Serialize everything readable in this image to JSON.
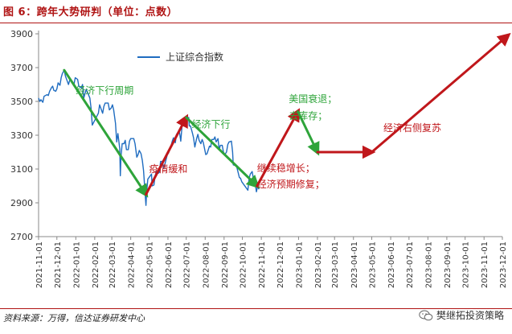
{
  "figure": {
    "title": "图 6：跨年大势研判（单位：点数）",
    "source": "资料来源：万得，信达证券研发中心",
    "brand": "樊继拓投资策略",
    "brand_icon": "wechat-icon"
  },
  "colors": {
    "title": "#b01414",
    "line": "#1f6cc0",
    "green": "#2ea43a",
    "red": "#c0171b",
    "axis": "#888888",
    "tick_text": "#333333"
  },
  "chart_data": {
    "type": "line",
    "ylim": [
      2700,
      3900
    ],
    "yticks": [
      2700,
      2900,
      3100,
      3300,
      3500,
      3700,
      3900
    ],
    "x_start": "2021-11-01",
    "x_end": "2023-12-01",
    "xticks": [
      "2021-11-01",
      "2021-12-01",
      "2022-01-01",
      "2022-02-01",
      "2022-03-01",
      "2022-04-01",
      "2022-05-01",
      "2022-06-01",
      "2022-07-01",
      "2022-08-01",
      "2022-09-01",
      "2022-10-01",
      "2022-11-01",
      "2022-12-01",
      "2023-01-01",
      "2023-02-01",
      "2023-03-01",
      "2023-04-01",
      "2023-05-01",
      "2023-06-01",
      "2023-07-01",
      "2023-08-01",
      "2023-09-01",
      "2023-10-01",
      "2023-11-01",
      "2023-12-01"
    ],
    "legend": "上证综合指数",
    "series": [
      {
        "name": "上证综合指数",
        "points": [
          [
            "2021-11-01",
            3520
          ],
          [
            "2021-11-03",
            3500
          ],
          [
            "2021-11-05",
            3510
          ],
          [
            "2021-11-08",
            3495
          ],
          [
            "2021-11-10",
            3530
          ],
          [
            "2021-11-12",
            3535
          ],
          [
            "2021-11-15",
            3540
          ],
          [
            "2021-11-17",
            3535
          ],
          [
            "2021-11-19",
            3560
          ],
          [
            "2021-11-22",
            3580
          ],
          [
            "2021-11-24",
            3590
          ],
          [
            "2021-11-26",
            3565
          ],
          [
            "2021-11-29",
            3560
          ],
          [
            "2021-12-01",
            3575
          ],
          [
            "2021-12-03",
            3610
          ],
          [
            "2021-12-06",
            3595
          ],
          [
            "2021-12-08",
            3640
          ],
          [
            "2021-12-10",
            3665
          ],
          [
            "2021-12-13",
            3685
          ],
          [
            "2021-12-15",
            3650
          ],
          [
            "2021-12-17",
            3630
          ],
          [
            "2021-12-20",
            3600
          ],
          [
            "2021-12-22",
            3625
          ],
          [
            "2021-12-24",
            3620
          ],
          [
            "2021-12-27",
            3615
          ],
          [
            "2021-12-29",
            3600
          ],
          [
            "2021-12-31",
            3640
          ],
          [
            "2022-01-04",
            3630
          ],
          [
            "2022-01-06",
            3590
          ],
          [
            "2022-01-10",
            3580
          ],
          [
            "2022-01-12",
            3600
          ],
          [
            "2022-01-14",
            3520
          ],
          [
            "2022-01-18",
            3570
          ],
          [
            "2022-01-20",
            3555
          ],
          [
            "2022-01-24",
            3520
          ],
          [
            "2022-01-26",
            3460
          ],
          [
            "2022-01-28",
            3360
          ],
          [
            "2022-02-07",
            3430
          ],
          [
            "2022-02-09",
            3480
          ],
          [
            "2022-02-11",
            3460
          ],
          [
            "2022-02-14",
            3430
          ],
          [
            "2022-02-16",
            3470
          ],
          [
            "2022-02-18",
            3490
          ],
          [
            "2022-02-21",
            3490
          ],
          [
            "2022-02-23",
            3490
          ],
          [
            "2022-02-25",
            3450
          ],
          [
            "2022-02-28",
            3460
          ],
          [
            "2022-03-02",
            3480
          ],
          [
            "2022-03-04",
            3450
          ],
          [
            "2022-03-07",
            3370
          ],
          [
            "2022-03-09",
            3260
          ],
          [
            "2022-03-11",
            3310
          ],
          [
            "2022-03-14",
            3220
          ],
          [
            "2022-03-15",
            3060
          ],
          [
            "2022-03-16",
            3170
          ],
          [
            "2022-03-18",
            3250
          ],
          [
            "2022-03-21",
            3250
          ],
          [
            "2022-03-23",
            3270
          ],
          [
            "2022-03-25",
            3215
          ],
          [
            "2022-03-28",
            3215
          ],
          [
            "2022-03-30",
            3265
          ],
          [
            "2022-04-01",
            3280
          ],
          [
            "2022-04-06",
            3280
          ],
          [
            "2022-04-08",
            3250
          ],
          [
            "2022-04-11",
            3170
          ],
          [
            "2022-04-13",
            3185
          ],
          [
            "2022-04-15",
            3210
          ],
          [
            "2022-04-18",
            3190
          ],
          [
            "2022-04-20",
            3150
          ],
          [
            "2022-04-22",
            3090
          ],
          [
            "2022-04-25",
            2930
          ],
          [
            "2022-04-26",
            2885
          ],
          [
            "2022-04-27",
            2960
          ],
          [
            "2022-04-29",
            3040
          ],
          [
            "2022-05-05",
            3070
          ],
          [
            "2022-05-06",
            3000
          ],
          [
            "2022-05-09",
            3005
          ],
          [
            "2022-05-11",
            3060
          ],
          [
            "2022-05-13",
            3085
          ],
          [
            "2022-05-16",
            3075
          ],
          [
            "2022-05-18",
            3080
          ],
          [
            "2022-05-20",
            3145
          ],
          [
            "2022-05-23",
            3145
          ],
          [
            "2022-05-25",
            3105
          ],
          [
            "2022-05-27",
            3130
          ],
          [
            "2022-05-31",
            3185
          ],
          [
            "2022-06-02",
            3195
          ],
          [
            "2022-06-06",
            3235
          ],
          [
            "2022-06-08",
            3265
          ],
          [
            "2022-06-10",
            3285
          ],
          [
            "2022-06-13",
            3255
          ],
          [
            "2022-06-15",
            3305
          ],
          [
            "2022-06-17",
            3315
          ],
          [
            "2022-06-20",
            3315
          ],
          [
            "2022-06-22",
            3265
          ],
          [
            "2022-06-24",
            3350
          ],
          [
            "2022-06-27",
            3380
          ],
          [
            "2022-06-29",
            3360
          ],
          [
            "2022-07-01",
            3390
          ],
          [
            "2022-07-05",
            3405
          ],
          [
            "2022-07-06",
            3355
          ],
          [
            "2022-07-08",
            3355
          ],
          [
            "2022-07-11",
            3315
          ],
          [
            "2022-07-13",
            3285
          ],
          [
            "2022-07-15",
            3230
          ],
          [
            "2022-07-18",
            3280
          ],
          [
            "2022-07-20",
            3305
          ],
          [
            "2022-07-22",
            3270
          ],
          [
            "2022-07-25",
            3250
          ],
          [
            "2022-07-27",
            3275
          ],
          [
            "2022-07-29",
            3255
          ],
          [
            "2022-08-02",
            3185
          ],
          [
            "2022-08-04",
            3190
          ],
          [
            "2022-08-08",
            3235
          ],
          [
            "2022-08-10",
            3230
          ],
          [
            "2022-08-12",
            3275
          ],
          [
            "2022-08-15",
            3275
          ],
          [
            "2022-08-17",
            3290
          ],
          [
            "2022-08-19",
            3260
          ],
          [
            "2022-08-22",
            3280
          ],
          [
            "2022-08-24",
            3215
          ],
          [
            "2022-08-26",
            3240
          ],
          [
            "2022-08-29",
            3240
          ],
          [
            "2022-08-31",
            3200
          ],
          [
            "2022-09-02",
            3185
          ],
          [
            "2022-09-05",
            3200
          ],
          [
            "2022-09-07",
            3245
          ],
          [
            "2022-09-09",
            3260
          ],
          [
            "2022-09-13",
            3265
          ],
          [
            "2022-09-15",
            3200
          ],
          [
            "2022-09-16",
            3125
          ],
          [
            "2022-09-20",
            3120
          ],
          [
            "2022-09-22",
            3110
          ],
          [
            "2022-09-26",
            3050
          ],
          [
            "2022-09-28",
            3045
          ],
          [
            "2022-09-30",
            3025
          ],
          [
            "2022-10-10",
            2975
          ],
          [
            "2022-10-12",
            3045
          ],
          [
            "2022-10-14",
            3070
          ],
          [
            "2022-10-17",
            3085
          ],
          [
            "2022-10-19",
            3045
          ],
          [
            "2022-10-21",
            3040
          ],
          [
            "2022-10-24",
            2965
          ],
          [
            "2022-10-26",
            3000
          ],
          [
            "2022-10-28",
            2980
          ]
        ]
      }
    ],
    "trend_arrows": [
      {
        "color": "green",
        "from": [
          "2021-12-13",
          3685
        ],
        "to": [
          "2022-04-26",
          2950
        ]
      },
      {
        "color": "red",
        "from": [
          "2022-04-26",
          2950
        ],
        "to": [
          "2022-07-01",
          3405
        ]
      },
      {
        "color": "green",
        "from": [
          "2022-07-01",
          3405
        ],
        "to": [
          "2022-10-25",
          3000
        ]
      },
      {
        "color": "red",
        "from": [
          "2022-10-25",
          3000
        ],
        "to": [
          "2022-12-31",
          3440
        ]
      },
      {
        "color": "green",
        "from": [
          "2022-12-31",
          3440
        ],
        "to": [
          "2023-02-01",
          3200
        ]
      },
      {
        "color": "red",
        "from": [
          "2023-02-01",
          3200
        ],
        "to": [
          "2023-05-01",
          3200
        ]
      },
      {
        "color": "red",
        "from": [
          "2023-05-01",
          3200
        ],
        "to": [
          "2023-12-10",
          3890
        ]
      }
    ],
    "annotations": [
      {
        "id": "economy-down-cycle",
        "text": "经济下行周期",
        "color": "green",
        "x": "2022-01-01",
        "y": 3545
      },
      {
        "id": "economy-down",
        "text": "经济下行",
        "color": "green",
        "x": "2022-07-10",
        "y": 3345
      },
      {
        "id": "epidemic-ease",
        "text": "疫情缓和",
        "color": "red",
        "x": "2022-05-01",
        "y": 3080
      },
      {
        "id": "continued-growth",
        "text": "继续稳增长；",
        "color": "red",
        "x": "2022-10-25",
        "y": 3085
      },
      {
        "id": "expected-recovery",
        "text": "经济预期修复；",
        "color": "red",
        "x": "2022-10-25",
        "y": 2990
      },
      {
        "id": "us-recession",
        "text": "美国衰退；",
        "color": "green",
        "x": "2022-12-16",
        "y": 3495
      },
      {
        "id": "destock",
        "text": "去库存；",
        "color": "green",
        "x": "2022-12-16",
        "y": 3395
      },
      {
        "id": "right-side-recovery",
        "text": "经济右侧复苏",
        "color": "red",
        "x": "2023-05-20",
        "y": 3325
      }
    ]
  }
}
